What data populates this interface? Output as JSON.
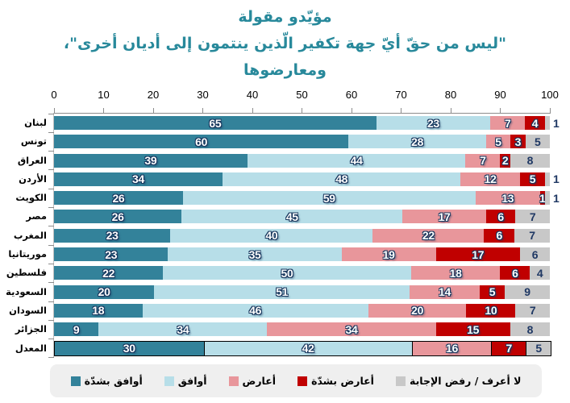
{
  "title": {
    "line1": "مؤيّدو مقولة",
    "line2": "\"ليس من حقّ أيّ جهة تكفير الّذين ينتمون إلى أديان أخرى\"،",
    "line3": "ومعارضوها"
  },
  "colors": {
    "title": "#28899B",
    "strongly_agree": "#33829A",
    "agree": "#B7DEE8",
    "oppose": "#E8969B",
    "strongly_oppose": "#C00000",
    "dont_know": "#C8C8C8",
    "value_text_light": "#FFFFFF",
    "value_text_dark": "#1F3864",
    "axis": "#8C8C8C",
    "legend_background": "#EFEFEF"
  },
  "chart_data": {
    "type": "bar",
    "orientation": "horizontal-stacked",
    "xlim": [
      0,
      100
    ],
    "xticks": [
      0,
      10,
      20,
      30,
      40,
      50,
      60,
      70,
      80,
      90,
      100
    ],
    "axis_position": "top",
    "grid": false,
    "legend_position": "bottom",
    "categories": [
      "لبنان",
      "تونس",
      "العراق",
      "الأردن",
      "الكويت",
      "مصر",
      "المغرب",
      "موريتانيا",
      "فلسطين",
      "السعودية",
      "السودان",
      "الجزائر",
      "المعدل"
    ],
    "keys": [
      "lebanon",
      "tunisia",
      "iraq",
      "jordan",
      "kuwait",
      "egypt",
      "morocco",
      "mauritania",
      "palestine",
      "saudi-arabia",
      "sudan",
      "algeria",
      "average"
    ],
    "highlighted_category": "المعدل",
    "series": [
      {
        "key": "strongly-agree",
        "name": "أوافق بشدّة",
        "color": "#33829A",
        "values": [
          65,
          60,
          39,
          34,
          26,
          26,
          23,
          23,
          22,
          20,
          18,
          9,
          30
        ]
      },
      {
        "key": "agree",
        "name": "أوافق",
        "color": "#B7DEE8",
        "values": [
          23,
          28,
          44,
          48,
          59,
          45,
          40,
          35,
          50,
          51,
          46,
          34,
          42
        ]
      },
      {
        "key": "oppose",
        "name": "أعارض",
        "color": "#E8969B",
        "values": [
          7,
          5,
          7,
          12,
          13,
          17,
          22,
          19,
          18,
          14,
          20,
          34,
          16
        ]
      },
      {
        "key": "strongly-oppose",
        "name": "أعارض بشدّة",
        "color": "#C00000",
        "values": [
          4,
          3,
          2,
          5,
          1,
          6,
          6,
          17,
          6,
          5,
          10,
          15,
          7
        ]
      },
      {
        "key": "dont-know",
        "name": "لا أعرف / رفض الإجابة",
        "color": "#C8C8C8",
        "values": [
          1,
          5,
          8,
          1,
          1,
          7,
          7,
          6,
          4,
          9,
          7,
          8,
          5
        ]
      }
    ]
  },
  "legend": {
    "items": [
      {
        "key": "strongly-agree",
        "label": "أوافق بشدّة",
        "color": "#33829A"
      },
      {
        "key": "agree",
        "label": "أوافق",
        "color": "#B7DEE8"
      },
      {
        "key": "oppose",
        "label": "أعارض",
        "color": "#E8969B"
      },
      {
        "key": "strongly-oppose",
        "label": "أعارض بشدّة",
        "color": "#C00000"
      },
      {
        "key": "dont-know",
        "label": "لا أعرف / رفض الإجابة",
        "color": "#C8C8C8"
      }
    ]
  }
}
